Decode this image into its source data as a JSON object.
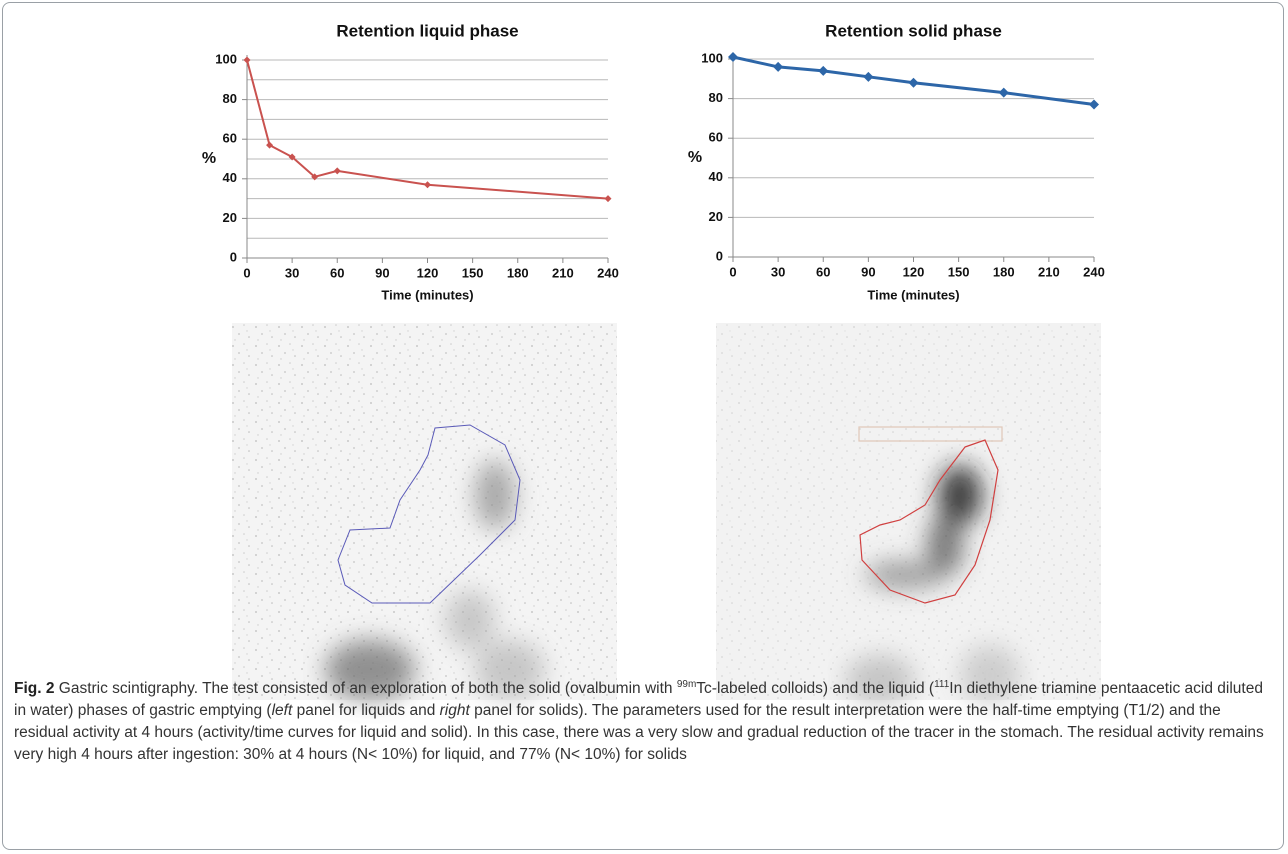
{
  "chart_data": [
    {
      "type": "line",
      "title": "Retention liquid phase",
      "x_label": "Time (minutes)",
      "y_label": "%",
      "x": [
        0,
        15,
        30,
        45,
        60,
        120,
        240
      ],
      "values": [
        100,
        57,
        51,
        41,
        44,
        37,
        30
      ],
      "color": "#c9524f",
      "xlim": [
        0,
        240
      ],
      "xticks": [
        0,
        30,
        60,
        90,
        120,
        150,
        180,
        210,
        240
      ],
      "ylim": [
        0,
        100
      ],
      "yticks": [
        0,
        20,
        40,
        60,
        80,
        100
      ],
      "yminor": [
        10,
        30,
        50,
        70,
        90
      ],
      "grid": true,
      "marker": "diamond"
    },
    {
      "type": "line",
      "title": "Retention solid phase",
      "x_label": "Time (minutes)",
      "y_label": "%",
      "x": [
        0,
        30,
        60,
        90,
        120,
        180,
        240
      ],
      "values": [
        101,
        96,
        94,
        91,
        88,
        83,
        77
      ],
      "color": "#2d66a8",
      "xlim": [
        0,
        240
      ],
      "xticks": [
        0,
        30,
        60,
        90,
        120,
        150,
        180,
        210,
        240
      ],
      "ylim": [
        0,
        100
      ],
      "yticks": [
        0,
        20,
        40,
        60,
        80,
        100
      ],
      "grid": true,
      "marker": "diamond"
    }
  ],
  "caption": {
    "label": "Fig. 2",
    "parts": [
      " Gastric scintigraphy. The test consisted of an exploration of both the solid (ovalbumin with ",
      "99m",
      "Tc-labeled colloids) and the liquid (",
      "111",
      "In diethylene triamine pentaacetic acid diluted in water) phases of gastric emptying (",
      "left",
      " panel for liquids and ",
      "right",
      " panel for solids). The parameters used for the result interpretation were the half-time emptying (T1/2) and the residual activity at 4 hours (activity/time curves for liquid and solid). In this case, there was a very slow and gradual reduction of the tracer in the stomach. The residual activity remains very high 4 hours after ingestion: 30% at 4 hours (N< 10%) for liquid, and 77% (N< 10%) for solids"
    ]
  }
}
